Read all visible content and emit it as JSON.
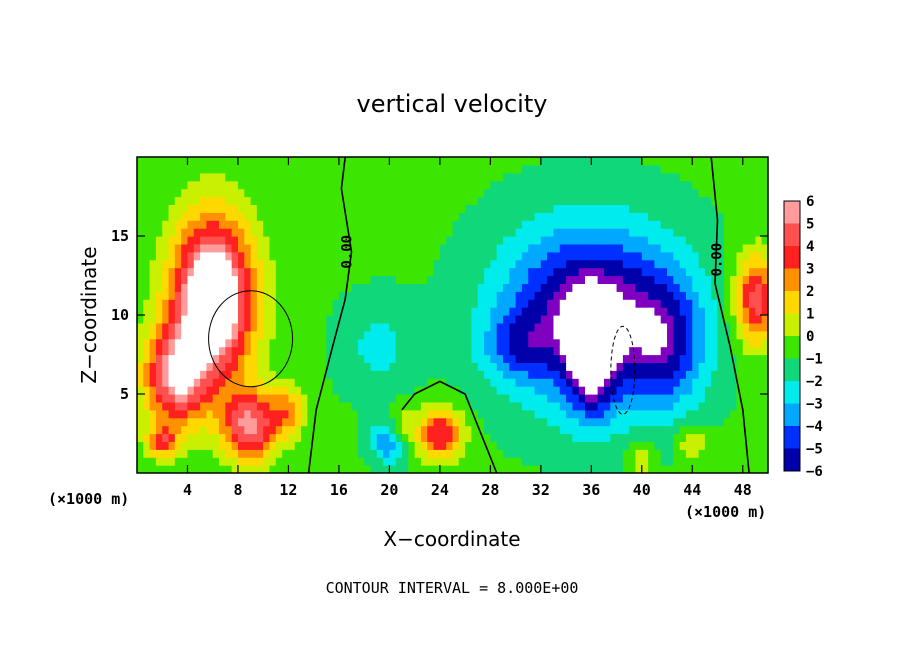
{
  "chart_data": {
    "type": "heatmap",
    "title": "vertical velocity",
    "xlabel": "X−coordinate",
    "ylabel": "Z−coordinate",
    "x_unit_left": "(×1000 m)",
    "x_unit_right": "(×1000 m)",
    "xlim": [
      0,
      50
    ],
    "ylim": [
      0,
      20
    ],
    "x_ticks": [
      4,
      8,
      12,
      16,
      20,
      24,
      28,
      32,
      36,
      40,
      44,
      48
    ],
    "x_tick_labels": [
      "4",
      "8",
      "12",
      "16",
      "20",
      "24",
      "28",
      "32",
      "36",
      "40",
      "44",
      "48"
    ],
    "y_ticks": [
      5,
      10,
      15
    ],
    "y_tick_labels": [
      "5",
      "10",
      "15"
    ],
    "colorbar": {
      "levels": [
        6,
        5,
        4,
        3,
        2,
        1,
        0,
        -1,
        -2,
        -3,
        -4,
        -5,
        -6
      ],
      "labels": [
        "6",
        "5",
        "4",
        "3",
        "2",
        "1",
        "0",
        "−1",
        "−2",
        "−3",
        "−4",
        "−5",
        "−6"
      ],
      "colors": [
        "#ff9b9b",
        "#ff5050",
        "#ff2020",
        "#ff9000",
        "#ffd800",
        "#c8f000",
        "#3ce600",
        "#10d87a",
        "#00ecec",
        "#00a8ff",
        "#0030ff",
        "#0000aa",
        "#8000c0"
      ]
    },
    "zero_contour_label": "0.00",
    "features": [
      {
        "kind": "updraft",
        "x": 6,
        "z": 11,
        "value": 8
      },
      {
        "kind": "downdraft",
        "x": 36,
        "z": 10,
        "value": -8
      },
      {
        "kind": "updraft",
        "x": 49,
        "z": 11,
        "value": 4
      }
    ],
    "contour_interval_text": "CONTOUR INTERVAL = 8.000E+00"
  }
}
